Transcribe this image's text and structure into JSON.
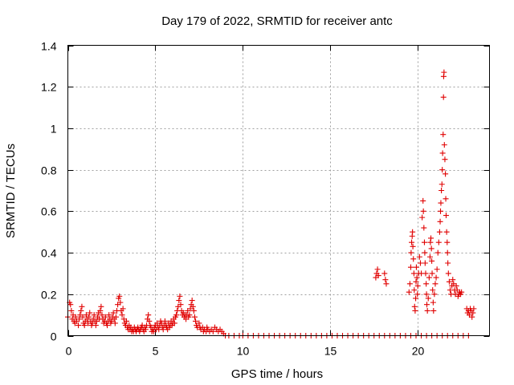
{
  "chart_data": {
    "type": "scatter",
    "title": "Day 179 of 2022, SRMTID for receiver antc",
    "xlabel": "GPS time / hours",
    "ylabel": "SRMTID / TECUs",
    "xlim": [
      0,
      24.1
    ],
    "ylim": [
      0,
      1.4
    ],
    "xticks": [
      0,
      5,
      10,
      15,
      20
    ],
    "xtick_labels": [
      "0",
      "5",
      "10",
      "15",
      "20"
    ],
    "yticks": [
      0,
      0.2,
      0.4,
      0.6,
      0.8,
      1.0,
      1.2,
      1.4
    ],
    "ytick_labels": [
      "0",
      "0.2",
      "0.4",
      "0.6",
      "0.8",
      "1",
      "1.2",
      "1.4"
    ],
    "grid": true,
    "legend": "none",
    "marker": "plus",
    "color": "#e00000",
    "series": [
      {
        "name": "SRMTID",
        "points": [
          [
            0.0,
            0.09
          ],
          [
            0.1,
            0.16
          ],
          [
            0.15,
            0.15
          ],
          [
            0.2,
            0.12
          ],
          [
            0.25,
            0.08
          ],
          [
            0.3,
            0.1
          ],
          [
            0.35,
            0.07
          ],
          [
            0.4,
            0.06
          ],
          [
            0.45,
            0.09
          ],
          [
            0.5,
            0.07
          ],
          [
            0.6,
            0.05
          ],
          [
            0.65,
            0.08
          ],
          [
            0.7,
            0.1
          ],
          [
            0.75,
            0.12
          ],
          [
            0.8,
            0.14
          ],
          [
            0.85,
            0.09
          ],
          [
            0.9,
            0.06
          ],
          [
            0.95,
            0.05
          ],
          [
            1.0,
            0.07
          ],
          [
            1.05,
            0.1
          ],
          [
            1.1,
            0.08
          ],
          [
            1.15,
            0.06
          ],
          [
            1.2,
            0.09
          ],
          [
            1.25,
            0.11
          ],
          [
            1.3,
            0.07
          ],
          [
            1.35,
            0.05
          ],
          [
            1.4,
            0.06
          ],
          [
            1.45,
            0.08
          ],
          [
            1.5,
            0.1
          ],
          [
            1.55,
            0.07
          ],
          [
            1.6,
            0.05
          ],
          [
            1.65,
            0.07
          ],
          [
            1.7,
            0.09
          ],
          [
            1.75,
            0.11
          ],
          [
            1.8,
            0.08
          ],
          [
            1.85,
            0.12
          ],
          [
            1.9,
            0.14
          ],
          [
            1.95,
            0.1
          ],
          [
            2.0,
            0.08
          ],
          [
            2.05,
            0.06
          ],
          [
            2.1,
            0.07
          ],
          [
            2.15,
            0.09
          ],
          [
            2.2,
            0.06
          ],
          [
            2.25,
            0.05
          ],
          [
            2.3,
            0.07
          ],
          [
            2.35,
            0.1
          ],
          [
            2.4,
            0.08
          ],
          [
            2.45,
            0.06
          ],
          [
            2.5,
            0.07
          ],
          [
            2.55,
            0.09
          ],
          [
            2.6,
            0.11
          ],
          [
            2.65,
            0.08
          ],
          [
            2.7,
            0.06
          ],
          [
            2.75,
            0.09
          ],
          [
            2.8,
            0.12
          ],
          [
            2.85,
            0.15
          ],
          [
            2.9,
            0.18
          ],
          [
            2.95,
            0.19
          ],
          [
            3.0,
            0.16
          ],
          [
            3.05,
            0.12
          ],
          [
            3.1,
            0.1
          ],
          [
            3.15,
            0.13
          ],
          [
            3.2,
            0.08
          ],
          [
            3.25,
            0.06
          ],
          [
            3.3,
            0.05
          ],
          [
            3.35,
            0.07
          ],
          [
            3.4,
            0.04
          ],
          [
            3.45,
            0.03
          ],
          [
            3.5,
            0.05
          ],
          [
            3.55,
            0.03
          ],
          [
            3.6,
            0.04
          ],
          [
            3.65,
            0.02
          ],
          [
            3.7,
            0.03
          ],
          [
            3.75,
            0.02
          ],
          [
            3.8,
            0.04
          ],
          [
            3.85,
            0.03
          ],
          [
            3.9,
            0.02
          ],
          [
            3.95,
            0.03
          ],
          [
            4.0,
            0.04
          ],
          [
            4.05,
            0.03
          ],
          [
            4.1,
            0.02
          ],
          [
            4.15,
            0.03
          ],
          [
            4.2,
            0.04
          ],
          [
            4.25,
            0.05
          ],
          [
            4.3,
            0.03
          ],
          [
            4.35,
            0.02
          ],
          [
            4.4,
            0.04
          ],
          [
            4.45,
            0.03
          ],
          [
            4.5,
            0.05
          ],
          [
            4.55,
            0.08
          ],
          [
            4.6,
            0.1
          ],
          [
            4.65,
            0.07
          ],
          [
            4.7,
            0.05
          ],
          [
            4.75,
            0.04
          ],
          [
            4.8,
            0.02
          ],
          [
            4.85,
            0.03
          ],
          [
            4.9,
            0.02
          ],
          [
            4.95,
            0.04
          ],
          [
            5.0,
            0.05
          ],
          [
            5.05,
            0.03
          ],
          [
            5.1,
            0.06
          ],
          [
            5.15,
            0.04
          ],
          [
            5.2,
            0.03
          ],
          [
            5.25,
            0.05
          ],
          [
            5.3,
            0.07
          ],
          [
            5.35,
            0.06
          ],
          [
            5.4,
            0.04
          ],
          [
            5.45,
            0.03
          ],
          [
            5.5,
            0.05
          ],
          [
            5.55,
            0.07
          ],
          [
            5.6,
            0.05
          ],
          [
            5.65,
            0.04
          ],
          [
            5.7,
            0.03
          ],
          [
            5.75,
            0.06
          ],
          [
            5.8,
            0.04
          ],
          [
            5.85,
            0.05
          ],
          [
            5.9,
            0.07
          ],
          [
            5.95,
            0.05
          ],
          [
            6.0,
            0.06
          ],
          [
            6.05,
            0.08
          ],
          [
            6.1,
            0.06
          ],
          [
            6.15,
            0.09
          ],
          [
            6.2,
            0.1
          ],
          [
            6.25,
            0.12
          ],
          [
            6.3,
            0.14
          ],
          [
            6.35,
            0.17
          ],
          [
            6.4,
            0.19
          ],
          [
            6.45,
            0.15
          ],
          [
            6.5,
            0.12
          ],
          [
            6.55,
            0.1
          ],
          [
            6.6,
            0.11
          ],
          [
            6.65,
            0.09
          ],
          [
            6.7,
            0.1
          ],
          [
            6.75,
            0.08
          ],
          [
            6.8,
            0.1
          ],
          [
            6.85,
            0.12
          ],
          [
            6.9,
            0.09
          ],
          [
            6.95,
            0.1
          ],
          [
            7.0,
            0.13
          ],
          [
            7.05,
            0.15
          ],
          [
            7.1,
            0.17
          ],
          [
            7.15,
            0.14
          ],
          [
            7.2,
            0.12
          ],
          [
            7.25,
            0.09
          ],
          [
            7.3,
            0.07
          ],
          [
            7.35,
            0.05
          ],
          [
            7.4,
            0.04
          ],
          [
            7.5,
            0.06
          ],
          [
            7.55,
            0.04
          ],
          [
            7.6,
            0.03
          ],
          [
            7.7,
            0.04
          ],
          [
            7.75,
            0.02
          ],
          [
            7.8,
            0.03
          ],
          [
            7.9,
            0.02
          ],
          [
            7.95,
            0.04
          ],
          [
            8.0,
            0.03
          ],
          [
            8.1,
            0.02
          ],
          [
            8.2,
            0.03
          ],
          [
            8.3,
            0.02
          ],
          [
            8.4,
            0.04
          ],
          [
            8.5,
            0.03
          ],
          [
            8.6,
            0.02
          ],
          [
            8.7,
            0.03
          ],
          [
            8.8,
            0.02
          ],
          [
            8.9,
            0.01
          ],
          [
            9.0,
            0.0
          ],
          [
            9.2,
            0.0
          ],
          [
            9.5,
            0.0
          ],
          [
            9.8,
            0.0
          ],
          [
            10.0,
            0.0
          ],
          [
            10.3,
            0.0
          ],
          [
            10.6,
            0.0
          ],
          [
            10.9,
            0.0
          ],
          [
            11.2,
            0.0
          ],
          [
            11.5,
            0.0
          ],
          [
            11.8,
            0.0
          ],
          [
            12.1,
            0.0
          ],
          [
            12.4,
            0.0
          ],
          [
            12.7,
            0.0
          ],
          [
            13.0,
            0.0
          ],
          [
            13.3,
            0.0
          ],
          [
            13.6,
            0.0
          ],
          [
            13.9,
            0.0
          ],
          [
            14.2,
            0.0
          ],
          [
            14.5,
            0.0
          ],
          [
            14.8,
            0.0
          ],
          [
            15.1,
            0.0
          ],
          [
            15.4,
            0.0
          ],
          [
            15.7,
            0.0
          ],
          [
            16.0,
            0.0
          ],
          [
            16.3,
            0.0
          ],
          [
            16.6,
            0.0
          ],
          [
            16.9,
            0.0
          ],
          [
            17.2,
            0.0
          ],
          [
            17.5,
            0.0
          ],
          [
            17.8,
            0.0
          ],
          [
            18.1,
            0.0
          ],
          [
            18.4,
            0.0
          ],
          [
            18.7,
            0.0
          ],
          [
            19.0,
            0.0
          ],
          [
            19.3,
            0.0
          ],
          [
            19.6,
            0.0
          ],
          [
            19.9,
            0.0
          ],
          [
            20.2,
            0.0
          ],
          [
            20.5,
            0.0
          ],
          [
            20.8,
            0.0
          ],
          [
            21.1,
            0.0
          ],
          [
            21.4,
            0.0
          ],
          [
            21.7,
            0.0
          ],
          [
            22.0,
            0.0
          ],
          [
            22.3,
            0.0
          ],
          [
            22.6,
            0.0
          ],
          [
            22.9,
            0.0
          ],
          [
            17.6,
            0.28
          ],
          [
            17.65,
            0.3
          ],
          [
            17.7,
            0.32
          ],
          [
            17.75,
            0.29
          ],
          [
            18.1,
            0.3
          ],
          [
            18.15,
            0.27
          ],
          [
            18.2,
            0.25
          ],
          [
            19.5,
            0.21
          ],
          [
            19.55,
            0.25
          ],
          [
            19.6,
            0.33
          ],
          [
            19.62,
            0.4
          ],
          [
            19.65,
            0.45
          ],
          [
            19.68,
            0.48
          ],
          [
            19.7,
            0.5
          ],
          [
            19.72,
            0.43
          ],
          [
            19.75,
            0.37
          ],
          [
            19.78,
            0.3
          ],
          [
            19.8,
            0.22
          ],
          [
            19.82,
            0.14
          ],
          [
            19.85,
            0.12
          ],
          [
            19.88,
            0.18
          ],
          [
            19.9,
            0.26
          ],
          [
            19.92,
            0.33
          ],
          [
            19.95,
            0.28
          ],
          [
            19.98,
            0.2
          ],
          [
            20.0,
            0.24
          ],
          [
            20.05,
            0.3
          ],
          [
            20.1,
            0.38
          ],
          [
            20.15,
            0.35
          ],
          [
            20.2,
            0.3
          ],
          [
            20.25,
            0.57
          ],
          [
            20.3,
            0.65
          ],
          [
            20.32,
            0.6
          ],
          [
            20.35,
            0.52
          ],
          [
            20.38,
            0.45
          ],
          [
            20.4,
            0.4
          ],
          [
            20.42,
            0.35
          ],
          [
            20.45,
            0.3
          ],
          [
            20.48,
            0.25
          ],
          [
            20.5,
            0.2
          ],
          [
            20.52,
            0.15
          ],
          [
            20.55,
            0.12
          ],
          [
            20.6,
            0.18
          ],
          [
            20.65,
            0.28
          ],
          [
            20.7,
            0.38
          ],
          [
            20.72,
            0.45
          ],
          [
            20.75,
            0.47
          ],
          [
            20.78,
            0.42
          ],
          [
            20.8,
            0.36
          ],
          [
            20.82,
            0.3
          ],
          [
            20.85,
            0.22
          ],
          [
            20.88,
            0.16
          ],
          [
            20.9,
            0.12
          ],
          [
            20.95,
            0.2
          ],
          [
            21.0,
            0.25
          ],
          [
            21.05,
            0.28
          ],
          [
            21.1,
            0.32
          ],
          [
            21.15,
            0.4
          ],
          [
            21.2,
            0.45
          ],
          [
            21.25,
            0.5
          ],
          [
            21.28,
            0.55
          ],
          [
            21.3,
            0.6
          ],
          [
            21.32,
            0.64
          ],
          [
            21.35,
            0.7
          ],
          [
            21.38,
            0.73
          ],
          [
            21.4,
            0.8
          ],
          [
            21.42,
            0.88
          ],
          [
            21.45,
            0.97
          ],
          [
            21.47,
            1.15
          ],
          [
            21.48,
            1.25
          ],
          [
            21.5,
            1.27
          ],
          [
            21.52,
            0.92
          ],
          [
            21.55,
            0.85
          ],
          [
            21.58,
            0.78
          ],
          [
            21.6,
            0.66
          ],
          [
            21.62,
            0.58
          ],
          [
            21.65,
            0.5
          ],
          [
            21.68,
            0.45
          ],
          [
            21.7,
            0.4
          ],
          [
            21.72,
            0.35
          ],
          [
            21.75,
            0.3
          ],
          [
            21.8,
            0.26
          ],
          [
            21.85,
            0.22
          ],
          [
            21.9,
            0.2
          ],
          [
            21.95,
            0.24
          ],
          [
            22.0,
            0.27
          ],
          [
            22.05,
            0.25
          ],
          [
            22.1,
            0.22
          ],
          [
            22.15,
            0.2
          ],
          [
            22.2,
            0.24
          ],
          [
            22.25,
            0.22
          ],
          [
            22.3,
            0.19
          ],
          [
            22.35,
            0.2
          ],
          [
            22.4,
            0.21
          ],
          [
            22.45,
            0.2
          ],
          [
            22.5,
            0.21
          ],
          [
            22.8,
            0.13
          ],
          [
            22.85,
            0.11
          ],
          [
            22.9,
            0.12
          ],
          [
            22.95,
            0.1
          ],
          [
            23.0,
            0.13
          ],
          [
            23.05,
            0.12
          ],
          [
            23.1,
            0.09
          ],
          [
            23.15,
            0.11
          ],
          [
            23.2,
            0.13
          ]
        ]
      }
    ]
  }
}
